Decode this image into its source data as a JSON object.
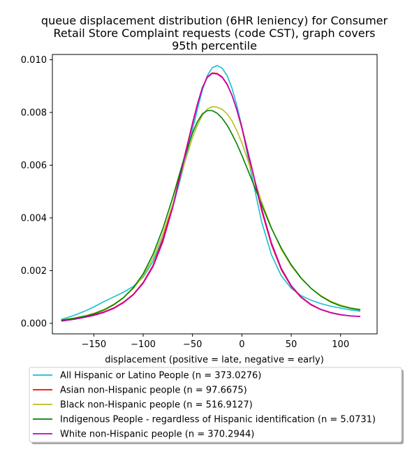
{
  "chart_data": {
    "type": "line",
    "title_lines": [
      "queue displacement distribution (6HR leniency) for Consumer",
      "Retail Store Complaint  requests (code CST), graph covers",
      "95th percentile"
    ],
    "xlabel": "displacement (positive = late, negative = early)",
    "ylabel": "",
    "xlim": [
      -192,
      137
    ],
    "ylim": [
      -0.0004,
      0.0102
    ],
    "xticks": [
      -150,
      -100,
      -50,
      0,
      50,
      100
    ],
    "xtick_labels": [
      "−150",
      "−100",
      "−50",
      "0",
      "50",
      "100"
    ],
    "yticks": [
      0.0,
      0.002,
      0.004,
      0.006,
      0.008,
      0.01
    ],
    "ytick_labels": [
      "0.000",
      "0.002",
      "0.004",
      "0.006",
      "0.008",
      "0.010"
    ],
    "grid": false,
    "legend_position": "below",
    "x": [
      -183,
      -170,
      -160,
      -150,
      -140,
      -130,
      -120,
      -110,
      -100,
      -90,
      -80,
      -70,
      -60,
      -50,
      -45,
      -40,
      -35,
      -30,
      -25,
      -20,
      -15,
      -10,
      -5,
      0,
      10,
      20,
      30,
      40,
      50,
      60,
      70,
      80,
      90,
      100,
      110,
      120
    ],
    "series": [
      {
        "name": "All Hispanic or Latino People (n = 373.0276)",
        "color": "#17becf",
        "values": [
          0.00015,
          0.0003,
          0.00045,
          0.00062,
          0.00082,
          0.001,
          0.00118,
          0.0014,
          0.00175,
          0.00235,
          0.00325,
          0.0044,
          0.0058,
          0.00735,
          0.00813,
          0.00885,
          0.0094,
          0.0097,
          0.00978,
          0.00968,
          0.0094,
          0.00892,
          0.00825,
          0.00745,
          0.0056,
          0.00385,
          0.0026,
          0.0018,
          0.00133,
          0.00105,
          0.00088,
          0.00075,
          0.00065,
          0.00058,
          0.00051,
          0.00046
        ]
      },
      {
        "name": "Asian non-Hispanic people (n = 97.6675)",
        "color": "#ff0000",
        "values": [
          0.0001,
          0.00017,
          0.00024,
          0.00032,
          0.00043,
          0.00058,
          0.0008,
          0.0011,
          0.00155,
          0.0022,
          0.0032,
          0.0045,
          0.00605,
          0.0076,
          0.00833,
          0.00895,
          0.00935,
          0.0095,
          0.00948,
          0.00935,
          0.00908,
          0.00865,
          0.00808,
          0.0074,
          0.00585,
          0.00428,
          0.00298,
          0.00203,
          0.0014,
          0.00098,
          0.0007,
          0.00052,
          0.0004,
          0.00032,
          0.00028,
          0.00026
        ]
      },
      {
        "name": "Black non-Hispanic people (n = 516.9127)",
        "color": "#bcbd22",
        "values": [
          0.00013,
          0.0002,
          0.00028,
          0.00038,
          0.00052,
          0.00072,
          0.00098,
          0.00132,
          0.0018,
          0.00248,
          0.0034,
          0.00455,
          0.00585,
          0.00705,
          0.00752,
          0.0079,
          0.00813,
          0.00822,
          0.0082,
          0.00812,
          0.00795,
          0.00768,
          0.0073,
          0.00685,
          0.00575,
          0.00462,
          0.00362,
          0.0028,
          0.00218,
          0.0017,
          0.00133,
          0.00105,
          0.00084,
          0.00069,
          0.00059,
          0.00053
        ]
      },
      {
        "name": "Indigenous People - regardless of Hispanic identification (n = 5.0731)",
        "color": "#008000",
        "values": [
          0.00012,
          0.00019,
          0.00026,
          0.00036,
          0.0005,
          0.0007,
          0.00097,
          0.00135,
          0.00188,
          0.00262,
          0.0036,
          0.00478,
          0.00608,
          0.00722,
          0.00765,
          0.00795,
          0.00807,
          0.00807,
          0.00797,
          0.00778,
          0.00752,
          0.00718,
          0.0068,
          0.00637,
          0.00545,
          0.0045,
          0.0036,
          0.00285,
          0.00222,
          0.00172,
          0.00133,
          0.00103,
          0.00081,
          0.00066,
          0.00057,
          0.00051
        ]
      },
      {
        "name": "White non-Hispanic people (n = 370.2944)",
        "color": "#bf00bf",
        "values": [
          8e-05,
          0.00015,
          0.00022,
          0.0003,
          0.00041,
          0.00056,
          0.00078,
          0.00108,
          0.00152,
          0.00215,
          0.0031,
          0.0044,
          0.00598,
          0.00755,
          0.0083,
          0.00893,
          0.00933,
          0.00948,
          0.00946,
          0.00933,
          0.00906,
          0.00865,
          0.0081,
          0.00745,
          0.00592,
          0.00436,
          0.00305,
          0.00208,
          0.00143,
          0.001,
          0.00072,
          0.00053,
          0.00041,
          0.00033,
          0.00028,
          0.00026
        ]
      }
    ]
  }
}
